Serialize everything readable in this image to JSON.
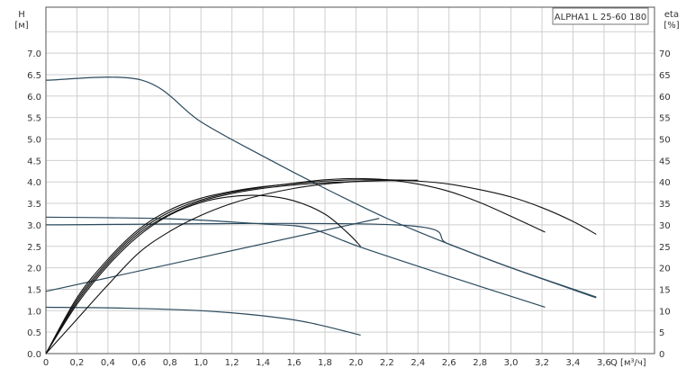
{
  "chart_data": {
    "type": "line",
    "title": "ALPHA1 L 25-60 180",
    "xlabel": "Q [м³/ч]",
    "ylabel": "H",
    "ylabel_unit": "[м]",
    "y2label": "eta",
    "y2label_unit": "[%]",
    "xlim": [
      0,
      3.9
    ],
    "ylim": [
      0,
      7.5
    ],
    "y2lim": [
      0,
      75
    ],
    "grid": true,
    "x_ticks": [
      "0",
      "0,2",
      "0,4",
      "0,6",
      "0,8",
      "1,0",
      "1,2",
      "1,4",
      "1,6",
      "1,8",
      "2,0",
      "2,2",
      "2,4",
      "2,6",
      "2,8",
      "3,0",
      "3,2",
      "3,4",
      "3,6"
    ],
    "y_ticks": [
      "0.0",
      "0.5",
      "1.0",
      "1.5",
      "2.0",
      "2.5",
      "3.0",
      "3.5",
      "4.0",
      "4.5",
      "5.0",
      "5.5",
      "6.0",
      "6.5",
      "7.0"
    ],
    "y2_ticks": [
      "0",
      "5",
      "10",
      "15",
      "20",
      "25",
      "30",
      "35",
      "40",
      "45",
      "50",
      "55",
      "60",
      "65",
      "70"
    ],
    "head_color": "#2b4a5e",
    "eta_color": "#111111",
    "head_series": [
      {
        "points": [
          [
            0,
            6.37
          ],
          [
            0.62,
            6.37
          ],
          [
            1.0,
            5.4
          ],
          [
            1.4,
            4.6
          ],
          [
            1.8,
            3.85
          ],
          [
            2.2,
            3.15
          ],
          [
            2.6,
            2.55
          ],
          [
            3.0,
            2.0
          ],
          [
            3.55,
            1.3
          ]
        ]
      },
      {
        "points": [
          [
            0,
            3.0
          ],
          [
            2.25,
            3.0
          ],
          [
            2.6,
            2.55
          ],
          [
            3.0,
            2.0
          ],
          [
            3.55,
            1.32
          ]
        ]
      },
      {
        "points": [
          [
            0,
            1.45
          ],
          [
            2.15,
            3.15
          ]
        ]
      },
      {
        "points": [
          [
            0,
            3.18
          ],
          [
            0.8,
            3.14
          ],
          [
            1.4,
            3.02
          ],
          [
            1.7,
            2.92
          ],
          [
            2.03,
            2.48
          ],
          [
            2.6,
            1.8
          ],
          [
            3.22,
            1.08
          ]
        ]
      },
      {
        "points": [
          [
            0,
            1.08
          ],
          [
            0.5,
            1.06
          ],
          [
            1.0,
            1.0
          ],
          [
            1.4,
            0.88
          ],
          [
            1.7,
            0.72
          ],
          [
            2.03,
            0.43
          ]
        ]
      }
    ],
    "eta_series": [
      {
        "points": [
          [
            0,
            0
          ],
          [
            0.2,
            13
          ],
          [
            0.4,
            22
          ],
          [
            0.6,
            29
          ],
          [
            0.8,
            33.5
          ],
          [
            1.0,
            36.2
          ],
          [
            1.2,
            37.8
          ],
          [
            1.4,
            38.9
          ],
          [
            1.6,
            39.6
          ],
          [
            1.8,
            40.2
          ],
          [
            2.0,
            40.5
          ],
          [
            2.2,
            40.5
          ],
          [
            2.4,
            40.2
          ],
          [
            2.6,
            39.5
          ],
          [
            2.8,
            38.2
          ],
          [
            3.0,
            36.5
          ],
          [
            3.2,
            34
          ],
          [
            3.4,
            30.8
          ],
          [
            3.55,
            27.8
          ]
        ]
      },
      {
        "points": [
          [
            0,
            0
          ],
          [
            0.2,
            12.5
          ],
          [
            0.4,
            21.5
          ],
          [
            0.6,
            28.5
          ],
          [
            0.8,
            33
          ],
          [
            1.0,
            35.8
          ],
          [
            1.2,
            37.6
          ],
          [
            1.4,
            38.8
          ],
          [
            1.6,
            39.7
          ],
          [
            1.8,
            40.5
          ],
          [
            2.0,
            40.8
          ],
          [
            2.2,
            40.5
          ],
          [
            2.4,
            39.5
          ],
          [
            2.6,
            37.8
          ],
          [
            2.8,
            35.2
          ],
          [
            3.0,
            32
          ],
          [
            3.22,
            28.3
          ]
        ]
      },
      {
        "points": [
          [
            0,
            0
          ],
          [
            0.2,
            11.5
          ],
          [
            0.4,
            20.5
          ],
          [
            0.6,
            27.5
          ],
          [
            0.8,
            32.3
          ],
          [
            1.0,
            35.2
          ],
          [
            1.2,
            36.6
          ],
          [
            1.4,
            36.8
          ],
          [
            1.6,
            35.6
          ],
          [
            1.8,
            32.5
          ],
          [
            1.95,
            28
          ],
          [
            2.03,
            25
          ]
        ]
      },
      {
        "points": [
          [
            0,
            0
          ],
          [
            0.2,
            8
          ],
          [
            0.4,
            16
          ],
          [
            0.6,
            23.5
          ],
          [
            0.8,
            28.5
          ],
          [
            1.0,
            32.2
          ],
          [
            1.2,
            35
          ],
          [
            1.4,
            37
          ],
          [
            1.6,
            38.5
          ],
          [
            1.8,
            39.5
          ],
          [
            2.0,
            40.1
          ],
          [
            2.2,
            40.4
          ],
          [
            2.4,
            40.4
          ]
        ]
      },
      {
        "points": [
          [
            0,
            0
          ],
          [
            0.2,
            12
          ],
          [
            0.4,
            21
          ],
          [
            0.6,
            28
          ],
          [
            0.8,
            32.5
          ],
          [
            1.0,
            35.5
          ],
          [
            1.2,
            37.3
          ],
          [
            1.4,
            38.5
          ],
          [
            1.6,
            39.3
          ],
          [
            1.8,
            39.8
          ],
          [
            2.0,
            40.1
          ],
          [
            2.2,
            40.3
          ],
          [
            2.4,
            40.3
          ]
        ]
      }
    ]
  }
}
